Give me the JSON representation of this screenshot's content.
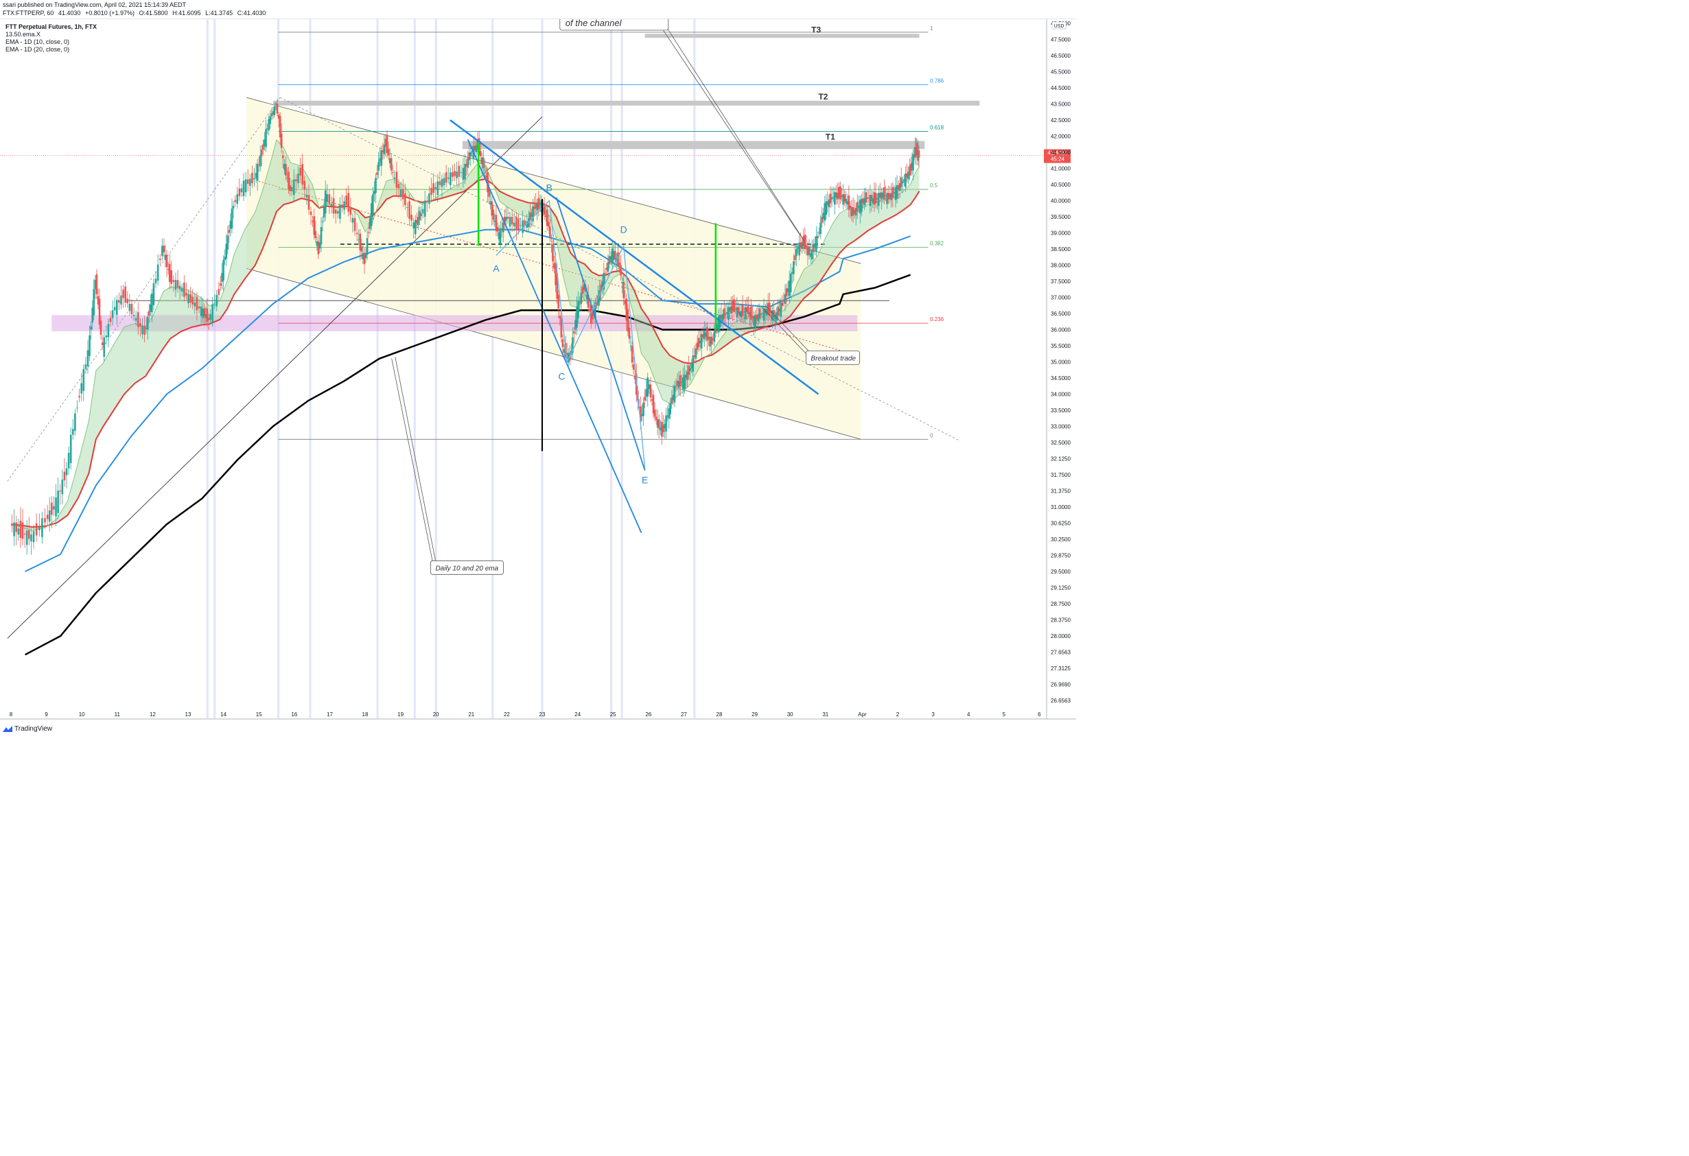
{
  "header": {
    "publisher": "ssari published on TradingView.com, April 02, 2021 15:14:39 AEDT",
    "symbol": "FTX:FTTPERP, 60",
    "price": "41.4030",
    "change": "+0.8010 (+1.97%)",
    "open": "O:41.5800",
    "high": "H:41.6095",
    "low": "L:41.3745",
    "close": "C:41.4030"
  },
  "legend": {
    "title": "FTT Perpetual Futures, 1h, FTX",
    "lines": [
      "13.50.ema.X",
      "EMA - 1D (10, close, 0)",
      "EMA - 1D (20, close, 0)"
    ]
  },
  "footer": {
    "brand": "TradingView"
  },
  "colors": {
    "up": "#26a69a",
    "down": "#ef5350",
    "ema_fast": "#2a8fe0",
    "ema_slow": "#000000",
    "channel_fill": "#fdf9e1",
    "target_zone": "#c8c8c8",
    "support_zone": "#e0b3e8",
    "pattern": "#1e88e5",
    "price_tag": "#ef5350"
  },
  "chart_data": {
    "type": "line",
    "y_axis": {
      "currency": "USD",
      "ticks": [
        "48.5000",
        "47.5000",
        "46.5000",
        "45.5000",
        "44.5000",
        "43.5000",
        "42.5000",
        "42.0000",
        "41.5000",
        "41.0000",
        "40.5000",
        "40.0000",
        "39.5000",
        "39.0000",
        "38.5000",
        "38.0000",
        "37.5000",
        "37.0000",
        "36.5000",
        "36.0000",
        "35.5000",
        "35.0000",
        "34.5000",
        "34.0000",
        "33.5000",
        "33.0000",
        "32.5000",
        "32.1250",
        "31.7500",
        "31.3750",
        "31.0000",
        "30.6250",
        "30.2500",
        "29.8750",
        "29.5000",
        "29.1250",
        "28.7500",
        "28.3750",
        "28.0000",
        "27.6563",
        "27.3125",
        "26.9690",
        "26.6563"
      ]
    },
    "x_axis": {
      "ticks": [
        "8",
        "9",
        "10",
        "11",
        "12",
        "13",
        "14",
        "15",
        "16",
        "17",
        "18",
        "19",
        "20",
        "21",
        "22",
        "23",
        "24",
        "25",
        "26",
        "27",
        "28",
        "29",
        "30",
        "31",
        "Apr",
        "2",
        "3",
        "4",
        "5",
        "6"
      ]
    },
    "last_price": {
      "value": "41.4030",
      "countdown": "45:24"
    },
    "fib_levels": [
      {
        "ratio": "1",
        "price": 47.95
      },
      {
        "ratio": "0.786",
        "price": 44.7
      },
      {
        "ratio": "0.618",
        "price": 42.15
      },
      {
        "ratio": "0.5",
        "price": 40.35
      },
      {
        "ratio": "0.382",
        "price": 38.55
      },
      {
        "ratio": "0.236",
        "price": 36.2
      },
      {
        "ratio": "0",
        "price": 32.6
      }
    ],
    "targets": [
      {
        "label": "T1",
        "price": 41.7
      },
      {
        "label": "T2",
        "price": 43.55
      },
      {
        "label": "T3",
        "price": 47.7
      }
    ],
    "pattern_points": [
      "A",
      "B",
      "C",
      "D",
      "E"
    ],
    "annotations": [
      {
        "text": "of the channel"
      },
      {
        "text": "Breakout trade"
      },
      {
        "text": "Daily 10 and 20 ema"
      }
    ],
    "price_path": [
      {
        "x": 8.0,
        "y": 30.6
      },
      {
        "x": 8.3,
        "y": 30.4
      },
      {
        "x": 8.6,
        "y": 30.3
      },
      {
        "x": 9.0,
        "y": 30.7
      },
      {
        "x": 9.3,
        "y": 31.1
      },
      {
        "x": 9.6,
        "y": 31.9
      },
      {
        "x": 9.9,
        "y": 33.7
      },
      {
        "x": 10.2,
        "y": 35.3
      },
      {
        "x": 10.4,
        "y": 37.6
      },
      {
        "x": 10.6,
        "y": 35.4
      },
      {
        "x": 10.9,
        "y": 36.6
      },
      {
        "x": 11.2,
        "y": 37.1
      },
      {
        "x": 11.5,
        "y": 36.4
      },
      {
        "x": 11.8,
        "y": 35.9
      },
      {
        "x": 12.0,
        "y": 37.0
      },
      {
        "x": 12.3,
        "y": 38.6
      },
      {
        "x": 12.5,
        "y": 37.6
      },
      {
        "x": 12.8,
        "y": 37.3
      },
      {
        "x": 13.1,
        "y": 36.9
      },
      {
        "x": 13.4,
        "y": 36.6
      },
      {
        "x": 13.6,
        "y": 36.3
      },
      {
        "x": 13.9,
        "y": 37.2
      },
      {
        "x": 14.1,
        "y": 38.6
      },
      {
        "x": 14.3,
        "y": 39.9
      },
      {
        "x": 14.6,
        "y": 40.5
      },
      {
        "x": 14.9,
        "y": 40.7
      },
      {
        "x": 15.1,
        "y": 41.5
      },
      {
        "x": 15.3,
        "y": 42.5
      },
      {
        "x": 15.5,
        "y": 43.4
      },
      {
        "x": 15.7,
        "y": 41.2
      },
      {
        "x": 15.9,
        "y": 40.3
      },
      {
        "x": 16.2,
        "y": 40.9
      },
      {
        "x": 16.5,
        "y": 39.5
      },
      {
        "x": 16.7,
        "y": 38.4
      },
      {
        "x": 16.9,
        "y": 40.2
      },
      {
        "x": 17.2,
        "y": 39.6
      },
      {
        "x": 17.5,
        "y": 40.0
      },
      {
        "x": 17.8,
        "y": 38.9
      },
      {
        "x": 18.0,
        "y": 38.1
      },
      {
        "x": 18.2,
        "y": 39.8
      },
      {
        "x": 18.4,
        "y": 41.2
      },
      {
        "x": 18.6,
        "y": 41.8
      },
      {
        "x": 18.8,
        "y": 40.8
      },
      {
        "x": 19.1,
        "y": 40.1
      },
      {
        "x": 19.4,
        "y": 39.2
      },
      {
        "x": 19.6,
        "y": 39.6
      },
      {
        "x": 19.9,
        "y": 40.3
      },
      {
        "x": 20.2,
        "y": 40.6
      },
      {
        "x": 20.5,
        "y": 40.8
      },
      {
        "x": 20.8,
        "y": 40.9
      },
      {
        "x": 21.0,
        "y": 41.5
      },
      {
        "x": 21.2,
        "y": 41.7
      },
      {
        "x": 21.4,
        "y": 40.9
      },
      {
        "x": 21.6,
        "y": 39.6
      },
      {
        "x": 21.8,
        "y": 38.9
      },
      {
        "x": 22.0,
        "y": 39.5
      },
      {
        "x": 22.3,
        "y": 39.2
      },
      {
        "x": 22.6,
        "y": 39.3
      },
      {
        "x": 22.8,
        "y": 39.8
      },
      {
        "x": 23.0,
        "y": 39.9
      },
      {
        "x": 23.2,
        "y": 39.2
      },
      {
        "x": 23.4,
        "y": 37.5
      },
      {
        "x": 23.6,
        "y": 35.4
      },
      {
        "x": 23.8,
        "y": 35.1
      },
      {
        "x": 24.0,
        "y": 36.6
      },
      {
        "x": 24.2,
        "y": 37.4
      },
      {
        "x": 24.4,
        "y": 36.3
      },
      {
        "x": 24.6,
        "y": 37.0
      },
      {
        "x": 24.8,
        "y": 37.8
      },
      {
        "x": 25.0,
        "y": 38.4
      },
      {
        "x": 25.2,
        "y": 38.0
      },
      {
        "x": 25.4,
        "y": 36.4
      },
      {
        "x": 25.6,
        "y": 34.7
      },
      {
        "x": 25.8,
        "y": 33.2
      },
      {
        "x": 26.0,
        "y": 34.4
      },
      {
        "x": 26.2,
        "y": 33.3
      },
      {
        "x": 26.4,
        "y": 32.8
      },
      {
        "x": 26.6,
        "y": 33.5
      },
      {
        "x": 26.8,
        "y": 34.3
      },
      {
        "x": 27.0,
        "y": 34.4
      },
      {
        "x": 27.2,
        "y": 34.8
      },
      {
        "x": 27.4,
        "y": 35.5
      },
      {
        "x": 27.6,
        "y": 35.9
      },
      {
        "x": 27.8,
        "y": 35.6
      },
      {
        "x": 28.0,
        "y": 36.3
      },
      {
        "x": 28.2,
        "y": 36.5
      },
      {
        "x": 28.4,
        "y": 36.7
      },
      {
        "x": 28.6,
        "y": 36.5
      },
      {
        "x": 28.8,
        "y": 36.6
      },
      {
        "x": 29.0,
        "y": 36.3
      },
      {
        "x": 29.2,
        "y": 36.5
      },
      {
        "x": 29.4,
        "y": 36.6
      },
      {
        "x": 29.6,
        "y": 36.4
      },
      {
        "x": 29.8,
        "y": 36.8
      },
      {
        "x": 30.0,
        "y": 37.4
      },
      {
        "x": 30.2,
        "y": 38.5
      },
      {
        "x": 30.4,
        "y": 38.7
      },
      {
        "x": 30.6,
        "y": 38.3
      },
      {
        "x": 30.8,
        "y": 38.9
      },
      {
        "x": 31.0,
        "y": 39.8
      },
      {
        "x": 31.2,
        "y": 40.1
      },
      {
        "x": 31.4,
        "y": 40.2
      },
      {
        "x": 31.6,
        "y": 40.0
      },
      {
        "x": 31.8,
        "y": 39.6
      },
      {
        "x": 32.0,
        "y": 39.9
      },
      {
        "x": 32.2,
        "y": 40.1
      },
      {
        "x": 32.4,
        "y": 40.0
      },
      {
        "x": 32.6,
        "y": 40.2
      },
      {
        "x": 32.8,
        "y": 40.1
      },
      {
        "x": 33.0,
        "y": 40.3
      },
      {
        "x": 33.2,
        "y": 40.6
      },
      {
        "x": 33.4,
        "y": 40.9
      },
      {
        "x": 33.55,
        "y": 41.6
      },
      {
        "x": 33.65,
        "y": 41.4
      }
    ],
    "ema_fast": [
      {
        "x": 8.4,
        "y": 29.5
      },
      {
        "x": 9.4,
        "y": 29.9
      },
      {
        "x": 10.4,
        "y": 31.5
      },
      {
        "x": 11.4,
        "y": 32.7
      },
      {
        "x": 12.4,
        "y": 34.0
      },
      {
        "x": 13.4,
        "y": 34.8
      },
      {
        "x": 14.4,
        "y": 35.8
      },
      {
        "x": 15.4,
        "y": 36.8
      },
      {
        "x": 16.4,
        "y": 37.6
      },
      {
        "x": 17.4,
        "y": 38.1
      },
      {
        "x": 18.4,
        "y": 38.5
      },
      {
        "x": 19.4,
        "y": 38.7
      },
      {
        "x": 20.4,
        "y": 38.9
      },
      {
        "x": 21.4,
        "y": 39.1
      },
      {
        "x": 22.4,
        "y": 39.1
      },
      {
        "x": 23.4,
        "y": 38.8
      },
      {
        "x": 24.4,
        "y": 38.5
      },
      {
        "x": 25.4,
        "y": 37.8
      },
      {
        "x": 26.4,
        "y": 36.9
      },
      {
        "x": 27.4,
        "y": 36.8
      },
      {
        "x": 28.4,
        "y": 36.8
      },
      {
        "x": 29.4,
        "y": 36.7
      },
      {
        "x": 30.4,
        "y": 37.2
      },
      {
        "x": 31.4,
        "y": 37.8
      },
      {
        "x": 31.5,
        "y": 38.2
      },
      {
        "x": 32.4,
        "y": 38.5
      },
      {
        "x": 33.4,
        "y": 38.9
      }
    ],
    "ema_slow": [
      {
        "x": 8.4,
        "y": 27.6
      },
      {
        "x": 9.4,
        "y": 28.0
      },
      {
        "x": 10.4,
        "y": 29.0
      },
      {
        "x": 11.4,
        "y": 29.8
      },
      {
        "x": 12.4,
        "y": 30.6
      },
      {
        "x": 13.4,
        "y": 31.2
      },
      {
        "x": 14.4,
        "y": 32.1
      },
      {
        "x": 15.4,
        "y": 33.0
      },
      {
        "x": 16.4,
        "y": 33.8
      },
      {
        "x": 17.4,
        "y": 34.4
      },
      {
        "x": 18.4,
        "y": 35.1
      },
      {
        "x": 19.4,
        "y": 35.5
      },
      {
        "x": 20.4,
        "y": 35.9
      },
      {
        "x": 21.4,
        "y": 36.3
      },
      {
        "x": 22.4,
        "y": 36.6
      },
      {
        "x": 23.4,
        "y": 36.6
      },
      {
        "x": 24.4,
        "y": 36.6
      },
      {
        "x": 25.4,
        "y": 36.4
      },
      {
        "x": 26.4,
        "y": 36.0
      },
      {
        "x": 27.4,
        "y": 36.0
      },
      {
        "x": 28.4,
        "y": 36.0
      },
      {
        "x": 29.4,
        "y": 36.1
      },
      {
        "x": 30.4,
        "y": 36.4
      },
      {
        "x": 31.4,
        "y": 36.8
      },
      {
        "x": 31.5,
        "y": 37.1
      },
      {
        "x": 32.4,
        "y": 37.3
      },
      {
        "x": 33.4,
        "y": 37.7
      }
    ]
  }
}
